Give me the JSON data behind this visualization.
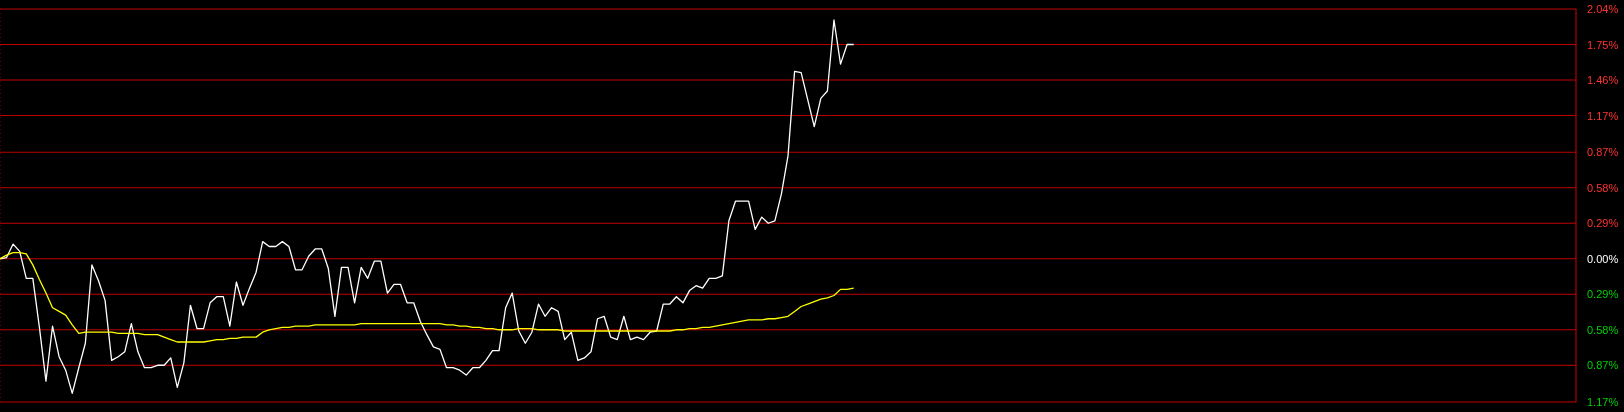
{
  "chart_data": {
    "type": "line",
    "categories": [
      null,
      null,
      null,
      null,
      null,
      null,
      null,
      null,
      null,
      null,
      null,
      null,
      null,
      null,
      null,
      null,
      null,
      null,
      null,
      null,
      null,
      null,
      null,
      null,
      null,
      null,
      null,
      null,
      null,
      null,
      null,
      null,
      null,
      null,
      null,
      null,
      null,
      null,
      null,
      null,
      null,
      null,
      null,
      null,
      null,
      null,
      null,
      null,
      null,
      null,
      null,
      null,
      null,
      null,
      null,
      null,
      null,
      null,
      null,
      null,
      null,
      null,
      null,
      null,
      null,
      null,
      null,
      null,
      null,
      null,
      null,
      null,
      null,
      null,
      null,
      null,
      null,
      null,
      null,
      null,
      null,
      null,
      null,
      null,
      null,
      null,
      null,
      null,
      null,
      null,
      null,
      null,
      null,
      null,
      null,
      null,
      null,
      null,
      null,
      null,
      null,
      null,
      null,
      null,
      null,
      null,
      null,
      null,
      null,
      null,
      null,
      null,
      null,
      null,
      null,
      null,
      null,
      null,
      null,
      null,
      null,
      null,
      null,
      null,
      null,
      null,
      null,
      null,
      null,
      null,
      null,
      null,
      null,
      null,
      null,
      null,
      null,
      null,
      null,
      null,
      null,
      null,
      null,
      null,
      null,
      null,
      null,
      null,
      null,
      null,
      null,
      null,
      null,
      null,
      null,
      null,
      null,
      null,
      null,
      null,
      null,
      null,
      null,
      null,
      null,
      null,
      null,
      null,
      null,
      null,
      null,
      null,
      null,
      null,
      null,
      null,
      null,
      null,
      null,
      null,
      null,
      null,
      null,
      null,
      null,
      null,
      null,
      null,
      null,
      null,
      null,
      null,
      null,
      null,
      null,
      null,
      null,
      null,
      null,
      null,
      null,
      null,
      null,
      null,
      null,
      null,
      null,
      null,
      null,
      null,
      null,
      null,
      null,
      null,
      null,
      null,
      null,
      null,
      null,
      null,
      null,
      null,
      null,
      null,
      null,
      null,
      null,
      null,
      null,
      null,
      null,
      null,
      null,
      null,
      null,
      null,
      null,
      null,
      null,
      null,
      null
    ],
    "ylim": [
      -1.17,
      2.04
    ],
    "yticks": [
      {
        "value": -1.17,
        "label": "1.17%"
      },
      {
        "value": -0.87,
        "label": "0.87%"
      },
      {
        "value": -0.58,
        "label": "0.58%"
      },
      {
        "value": -0.29,
        "label": "0.29%"
      },
      {
        "value": 0,
        "label": "0.00%"
      },
      {
        "value": 0.29,
        "label": "0.29%"
      },
      {
        "value": 0.58,
        "label": "0.58%"
      },
      {
        "value": 0.87,
        "label": "0.87%"
      },
      {
        "value": 1.17,
        "label": "1.17%"
      },
      {
        "value": 1.46,
        "label": "1.46%"
      },
      {
        "value": 1.75,
        "label": "1.75%"
      },
      {
        "value": 2.04,
        "label": "2.04%"
      }
    ],
    "grid": true,
    "legend": false,
    "tick_labels": "y",
    "line_style": "solid",
    "series": [
      {
        "color": "#ffffff",
        "values": [
          0,
          0.01,
          0.12,
          0.06,
          -0.16,
          -0.16,
          -0.56,
          -1.0,
          -0.55,
          -0.8,
          -0.91,
          -1.1,
          -0.89,
          -0.69,
          -0.05,
          -0.18,
          -0.34,
          -0.83,
          -0.8,
          -0.76,
          -0.53,
          -0.76,
          -0.89,
          -0.89,
          -0.87,
          -0.87,
          -0.81,
          -1.05,
          -0.85,
          -0.38,
          -0.57,
          -0.57,
          -0.36,
          -0.31,
          -0.31,
          -0.55,
          -0.19,
          -0.38,
          -0.24,
          -0.11,
          0.14,
          0.1,
          0.1,
          0.14,
          0.1,
          -0.09,
          -0.09,
          0.02,
          0.08,
          0.08,
          -0.08,
          -0.47,
          -0.07,
          -0.07,
          -0.36,
          -0.07,
          -0.16,
          -0.02,
          -0.02,
          -0.28,
          -0.21,
          -0.21,
          -0.36,
          -0.36,
          -0.51,
          -0.62,
          -0.72,
          -0.74,
          -0.89,
          -0.89,
          -0.91,
          -0.95,
          -0.89,
          -0.89,
          -0.83,
          -0.75,
          -0.75,
          -0.4,
          -0.28,
          -0.59,
          -0.69,
          -0.6,
          -0.37,
          -0.47,
          -0.4,
          -0.43,
          -0.66,
          -0.6,
          -0.83,
          -0.81,
          -0.76,
          -0.49,
          -0.47,
          -0.64,
          -0.66,
          -0.47,
          -0.66,
          -0.64,
          -0.66,
          -0.6,
          -0.59,
          -0.37,
          -0.37,
          -0.31,
          -0.36,
          -0.26,
          -0.22,
          -0.24,
          -0.16,
          -0.16,
          -0.14,
          0.31,
          0.47,
          0.47,
          0.47,
          0.24,
          0.34,
          0.29,
          0.31,
          0.53,
          0.84,
          1.53,
          1.52,
          1.3,
          1.08,
          1.31,
          1.37,
          1.95,
          1.59,
          1.75,
          1.75,
          null,
          null,
          null,
          null,
          null,
          null,
          null,
          null,
          null,
          null,
          null,
          null,
          null,
          null,
          null,
          null,
          null,
          null,
          null,
          null,
          null,
          null,
          null,
          null,
          null,
          null,
          null,
          null,
          null,
          null,
          null,
          null,
          null,
          null,
          null,
          null,
          null,
          null,
          null,
          null,
          null,
          null,
          null,
          null,
          null,
          null,
          null,
          null,
          null,
          null,
          null,
          null,
          null,
          null,
          null,
          null,
          null,
          null,
          null,
          null,
          null,
          null,
          null,
          null,
          null,
          null,
          null,
          null,
          null,
          null,
          null,
          null,
          null,
          null,
          null,
          null,
          null,
          null,
          null,
          null,
          null,
          null,
          null,
          null,
          null,
          null,
          null,
          null,
          null,
          null,
          null,
          null,
          null,
          null,
          null,
          null,
          null,
          null,
          null,
          null,
          null,
          null,
          null,
          null,
          null,
          null,
          null,
          null,
          null,
          null
        ]
      },
      {
        "color": "#ffff00",
        "values": [
          0,
          0.03,
          0.05,
          0.05,
          0.04,
          -0.05,
          -0.17,
          -0.28,
          -0.4,
          -0.43,
          -0.46,
          -0.54,
          -0.61,
          -0.6,
          -0.6,
          -0.6,
          -0.6,
          -0.6,
          -0.61,
          -0.61,
          -0.61,
          -0.61,
          -0.62,
          -0.62,
          -0.62,
          -0.64,
          -0.66,
          -0.68,
          -0.68,
          -0.68,
          -0.68,
          -0.68,
          -0.67,
          -0.66,
          -0.66,
          -0.65,
          -0.65,
          -0.64,
          -0.64,
          -0.64,
          -0.6,
          -0.58,
          -0.57,
          -0.56,
          -0.56,
          -0.55,
          -0.55,
          -0.55,
          -0.54,
          -0.54,
          -0.54,
          -0.54,
          -0.54,
          -0.54,
          -0.54,
          -0.53,
          -0.53,
          -0.53,
          -0.53,
          -0.53,
          -0.53,
          -0.53,
          -0.53,
          -0.53,
          -0.53,
          -0.53,
          -0.53,
          -0.53,
          -0.54,
          -0.54,
          -0.55,
          -0.55,
          -0.56,
          -0.56,
          -0.57,
          -0.57,
          -0.58,
          -0.58,
          -0.58,
          -0.57,
          -0.57,
          -0.57,
          -0.58,
          -0.58,
          -0.58,
          -0.58,
          -0.59,
          -0.59,
          -0.59,
          -0.59,
          -0.59,
          -0.59,
          -0.59,
          -0.59,
          -0.59,
          -0.59,
          -0.59,
          -0.59,
          -0.59,
          -0.59,
          -0.59,
          -0.59,
          -0.59,
          -0.58,
          -0.58,
          -0.57,
          -0.57,
          -0.56,
          -0.56,
          -0.55,
          -0.54,
          -0.53,
          -0.52,
          -0.51,
          -0.5,
          -0.5,
          -0.5,
          -0.49,
          -0.49,
          -0.48,
          -0.47,
          -0.43,
          -0.39,
          -0.37,
          -0.35,
          -0.33,
          -0.32,
          -0.3,
          -0.25,
          -0.25,
          -0.24,
          null,
          null,
          null,
          null,
          null,
          null,
          null,
          null,
          null,
          null,
          null,
          null,
          null,
          null,
          null,
          null,
          null,
          null,
          null,
          null,
          null,
          null,
          null,
          null,
          null,
          null,
          null,
          null,
          null,
          null,
          null,
          null,
          null,
          null,
          null,
          null,
          null,
          null,
          null,
          null,
          null,
          null,
          null,
          null,
          null,
          null,
          null,
          null,
          null,
          null,
          null,
          null,
          null,
          null,
          null,
          null,
          null,
          null,
          null,
          null,
          null,
          null,
          null,
          null,
          null,
          null,
          null,
          null,
          null,
          null,
          null,
          null,
          null,
          null,
          null,
          null,
          null,
          null,
          null,
          null,
          null,
          null,
          null,
          null,
          null,
          null,
          null,
          null,
          null,
          null,
          null,
          null,
          null,
          null,
          null,
          null,
          null,
          null,
          null,
          null,
          null,
          null,
          null,
          null,
          null,
          null,
          null,
          null,
          null,
          null
        ]
      }
    ]
  }
}
